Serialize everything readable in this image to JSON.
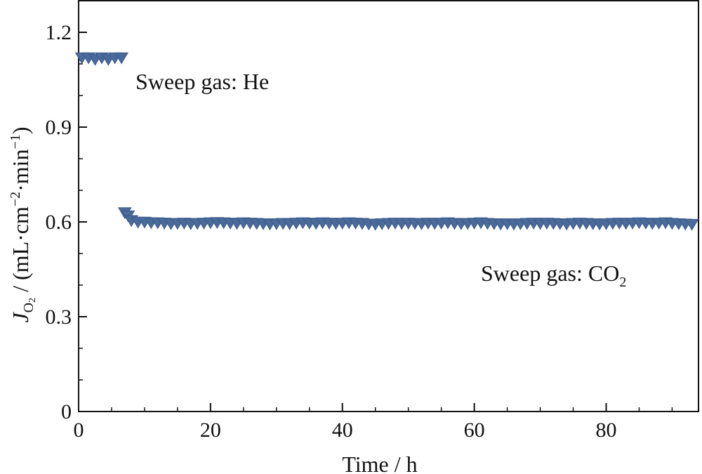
{
  "chart_data": {
    "type": "scatter",
    "marker": "triangle-down",
    "color": "#4a6a9a",
    "xlabel": "Time / h",
    "ylabel": {
      "main": "J",
      "subscript": "O",
      "subscript_sub": "2",
      "units_prefix": " / (mL·cm",
      "sup1": "−2",
      "units_mid": "·min",
      "sup2": "−1",
      "units_suffix": ")"
    },
    "xlim": [
      0,
      94
    ],
    "ylim": [
      0,
      1.3
    ],
    "xticks": [
      0,
      20,
      40,
      60,
      80
    ],
    "xtick_labels": [
      "0",
      "20",
      "40",
      "60",
      "80"
    ],
    "yticks": [
      0,
      0.3,
      0.6,
      0.9,
      1.2
    ],
    "ytick_labels": [
      "0",
      "0.3",
      "0.6",
      "0.9",
      "1.2"
    ],
    "grid": false,
    "annotations": [
      {
        "text": "Sweep gas: He",
        "sub": ""
      },
      {
        "text": "Sweep gas: CO",
        "sub": "2"
      }
    ],
    "series": [
      {
        "x": [
          0.5,
          1.5,
          2.5,
          3.5,
          4.5,
          5.5,
          6.5,
          7.0,
          7.5,
          8.0,
          9,
          10,
          11,
          12,
          13,
          14,
          15,
          16,
          17,
          18,
          19,
          20,
          21,
          22,
          23,
          24,
          25,
          26,
          27,
          28,
          29,
          30,
          31,
          32,
          33,
          34,
          35,
          36,
          37,
          38,
          39,
          40,
          41,
          42,
          43,
          44,
          45,
          46,
          47,
          48,
          49,
          50,
          51,
          52,
          53,
          54,
          55,
          56,
          57,
          58,
          59,
          60,
          61,
          62,
          63,
          64,
          65,
          66,
          67,
          68,
          69,
          70,
          71,
          72,
          73,
          74,
          75,
          76,
          77,
          78,
          79,
          80,
          81,
          82,
          83,
          84,
          85,
          86,
          87,
          88,
          89,
          90,
          91,
          92,
          93
        ],
        "y": [
          1.12,
          1.12,
          1.115,
          1.12,
          1.115,
          1.12,
          1.12,
          0.63,
          0.62,
          0.605,
          0.6,
          0.6,
          0.598,
          0.598,
          0.597,
          0.595,
          0.596,
          0.597,
          0.595,
          0.596,
          0.597,
          0.598,
          0.599,
          0.598,
          0.597,
          0.596,
          0.598,
          0.597,
          0.596,
          0.595,
          0.594,
          0.595,
          0.596,
          0.595,
          0.597,
          0.598,
          0.597,
          0.596,
          0.598,
          0.597,
          0.596,
          0.597,
          0.598,
          0.597,
          0.596,
          0.594,
          0.593,
          0.595,
          0.596,
          0.597,
          0.596,
          0.597,
          0.596,
          0.595,
          0.597,
          0.596,
          0.597,
          0.598,
          0.596,
          0.595,
          0.596,
          0.597,
          0.598,
          0.596,
          0.595,
          0.594,
          0.595,
          0.594,
          0.595,
          0.596,
          0.597,
          0.596,
          0.597,
          0.596,
          0.595,
          0.594,
          0.596,
          0.597,
          0.596,
          0.595,
          0.594,
          0.595,
          0.596,
          0.597,
          0.596,
          0.597,
          0.598,
          0.597,
          0.596,
          0.597,
          0.598,
          0.596,
          0.595,
          0.594,
          0.593
        ]
      }
    ]
  }
}
